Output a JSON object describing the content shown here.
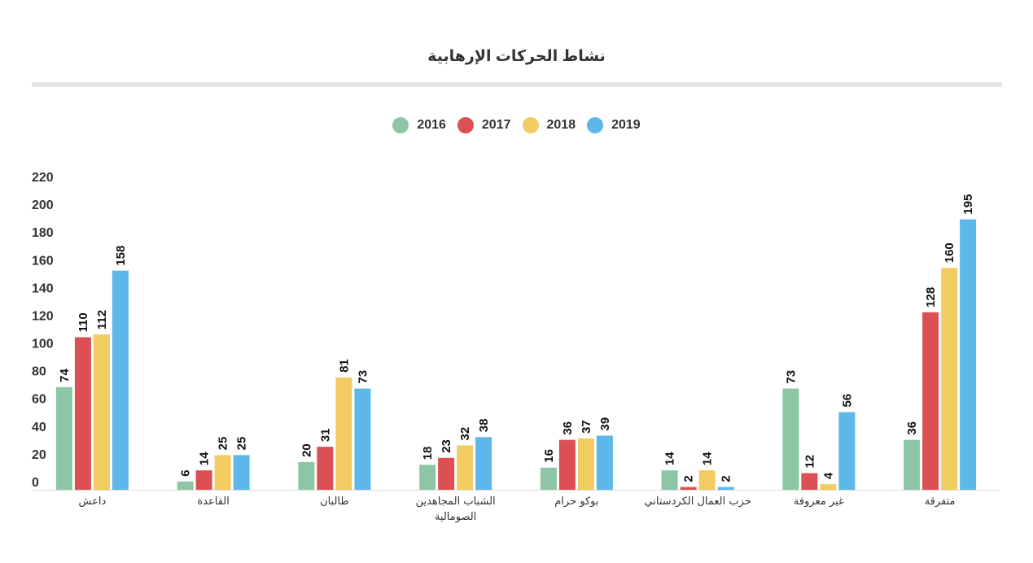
{
  "chart_data": {
    "type": "bar",
    "title": "نشاط الحركات الإرهابية",
    "xlabel": "",
    "ylabel": "",
    "ylim": [
      0,
      220
    ],
    "yticks": [
      0,
      20,
      40,
      60,
      80,
      100,
      120,
      140,
      160,
      180,
      200,
      220
    ],
    "grid": false,
    "legend_position": "top-center",
    "categories": [
      [
        "داعش"
      ],
      [
        "القاعدة"
      ],
      [
        "طالبان"
      ],
      [
        "الشباب المجاهدين",
        "الصومالية"
      ],
      [
        "بوكو حرام"
      ],
      [
        "حزب العمال الكردستاني"
      ],
      [
        "غير معروفة"
      ],
      [
        "متفرقة"
      ]
    ],
    "series": [
      {
        "name": "2016",
        "color": "#8dc6a4",
        "values": [
          74,
          6,
          20,
          18,
          16,
          14,
          73,
          36
        ]
      },
      {
        "name": "2017",
        "color": "#dc4f52",
        "values": [
          110,
          14,
          31,
          23,
          36,
          2,
          12,
          128
        ]
      },
      {
        "name": "2018",
        "color": "#f3cb63",
        "values": [
          112,
          25,
          81,
          32,
          37,
          14,
          4,
          160
        ]
      },
      {
        "name": "2019",
        "color": "#5db7e8",
        "values": [
          158,
          25,
          73,
          38,
          39,
          2,
          56,
          195
        ]
      }
    ]
  }
}
